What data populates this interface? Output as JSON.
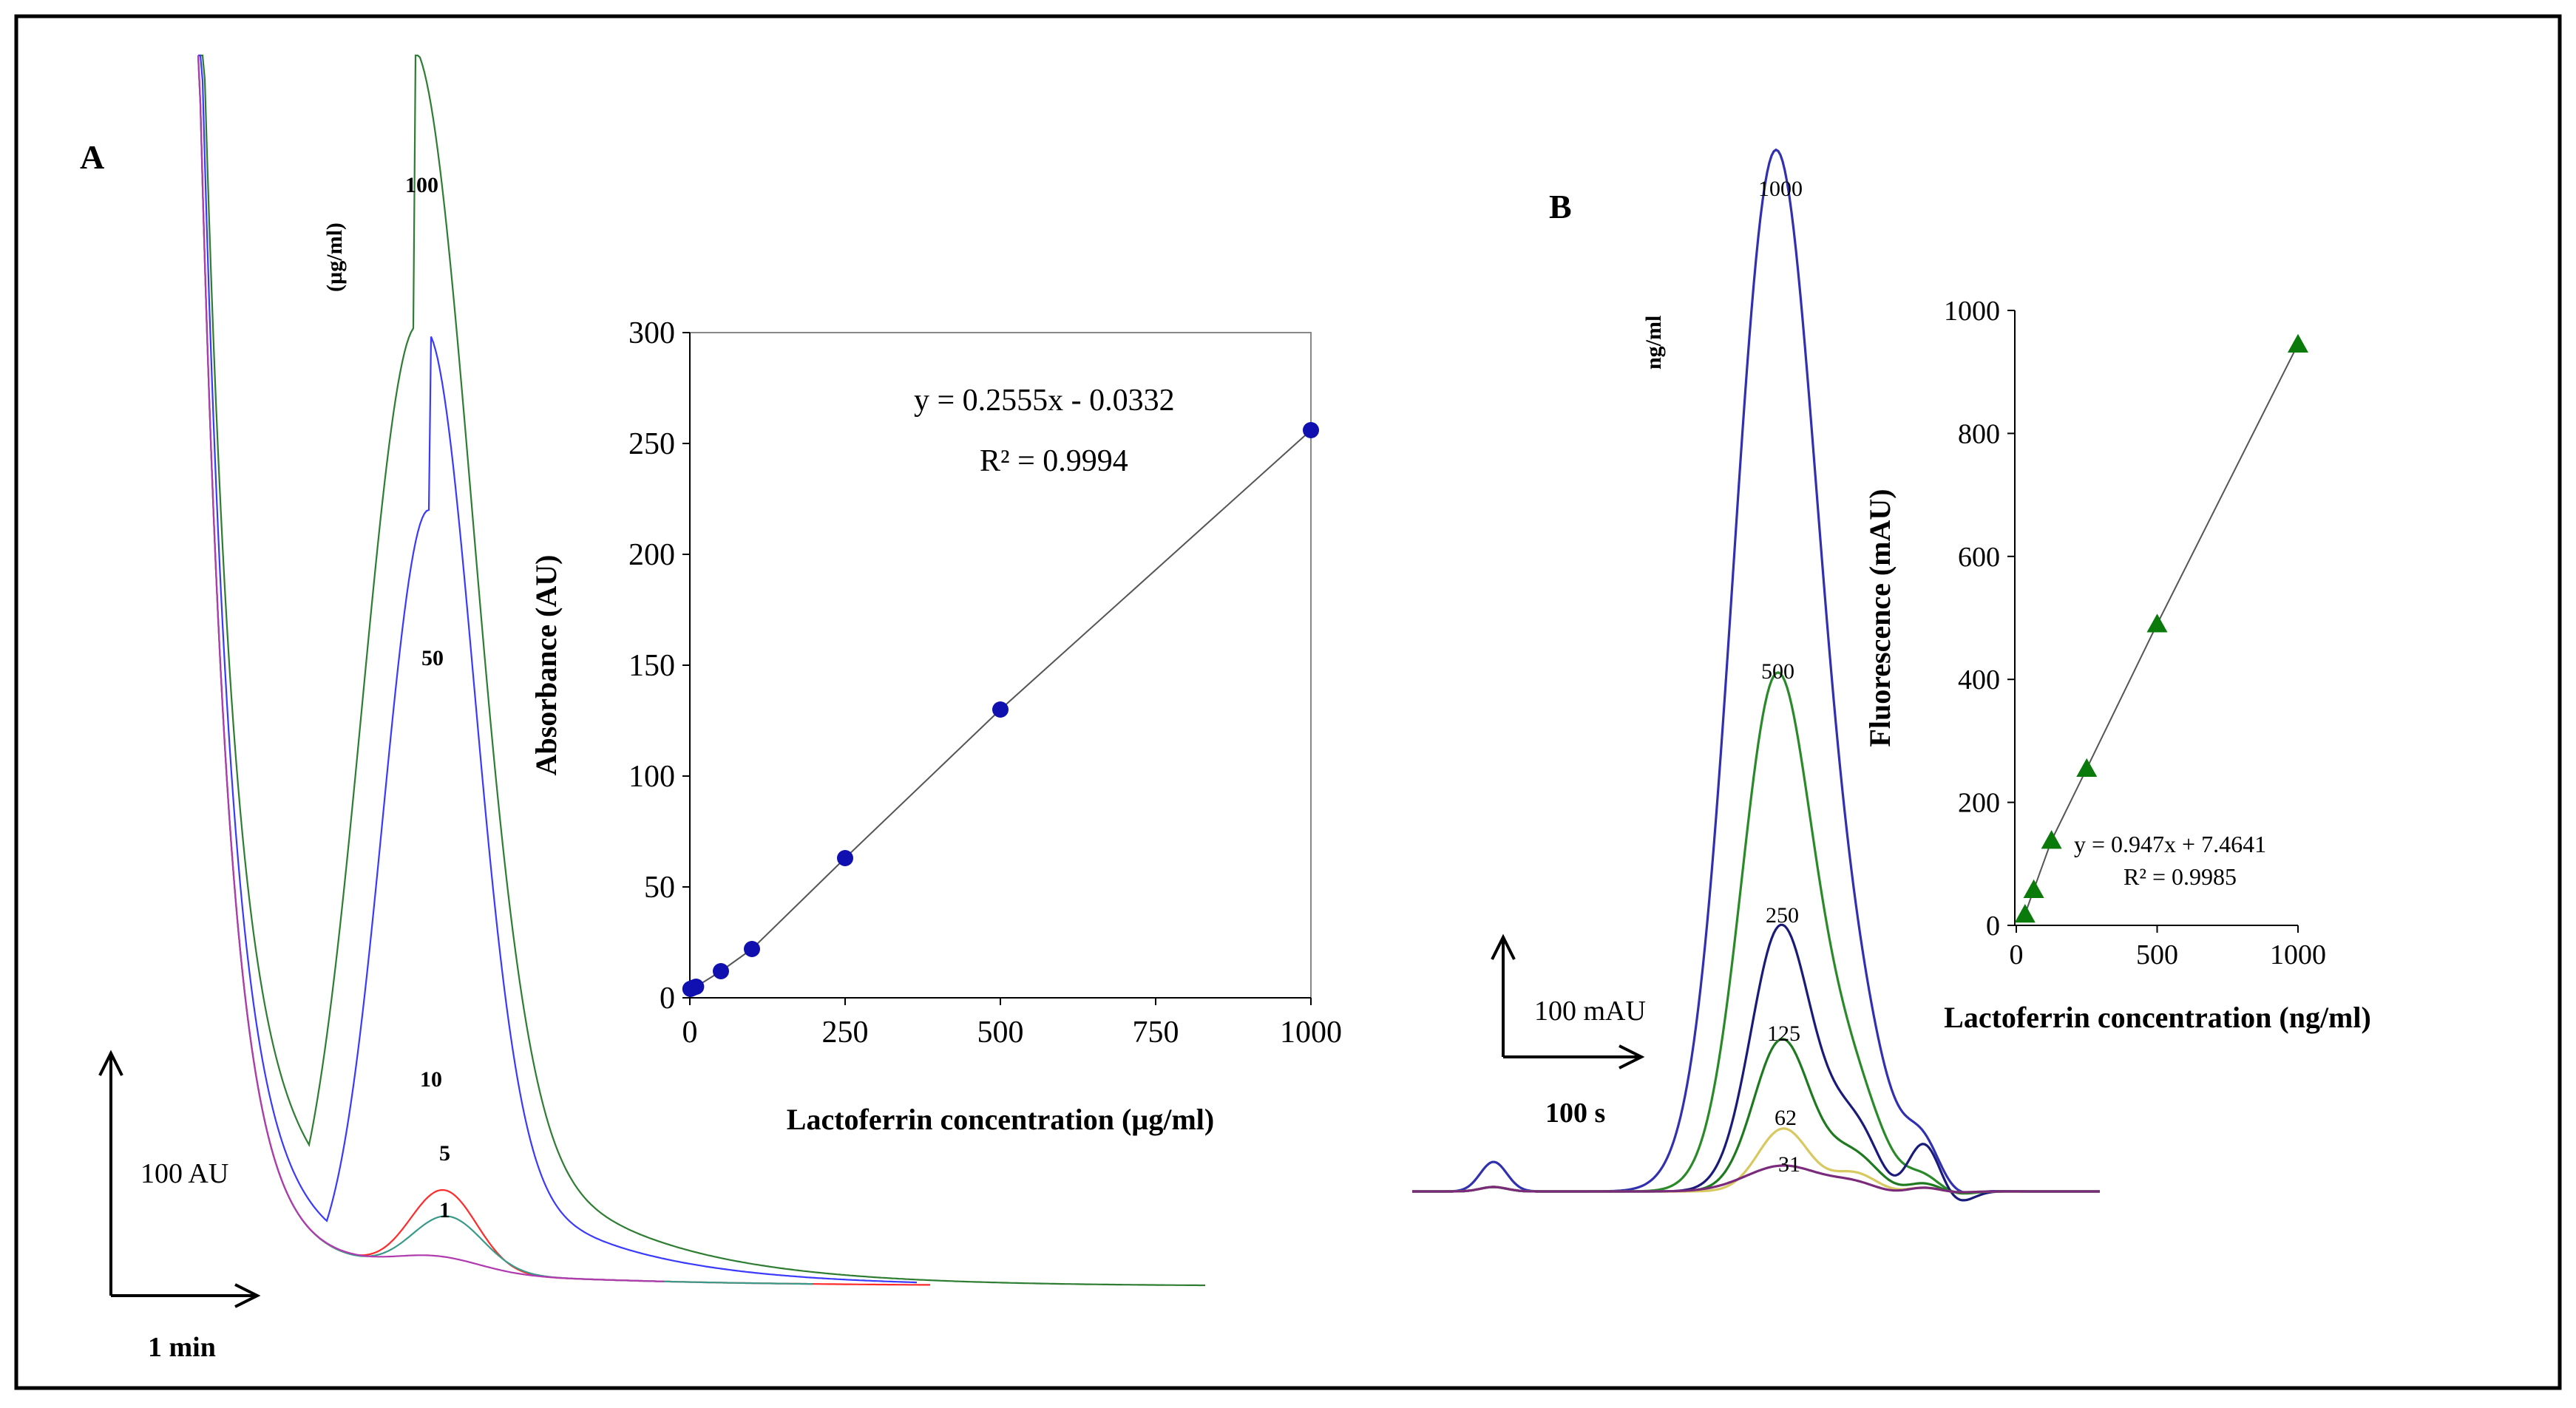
{
  "panels": {
    "A": {
      "label": "A",
      "unit_label": "(µg/ml)",
      "scale_y_label": "100 AU",
      "scale_x_label": "1 min",
      "peak_labels": [
        "100",
        "50",
        "10",
        "5",
        "1"
      ]
    },
    "B": {
      "label": "B",
      "unit_label": "ng/ml",
      "scale_y_label": "100 mAU",
      "scale_x_label": "100 s",
      "peak_labels": [
        "1000",
        "500",
        "250",
        "125",
        "62",
        "31"
      ]
    }
  },
  "colors": {
    "green": "#2e7d32",
    "blue": "#3a3aff",
    "red": "#ff2a2a",
    "teal": "#3a9a8a",
    "magenta": "#b03ab0",
    "navy": "#1a1a7a",
    "yellow": "#d8c860",
    "point_blue": "#1010b0",
    "triangle_green": "#0a7a0a"
  },
  "chart_data": [
    {
      "type": "scatter",
      "name": "calibration-A",
      "xlabel": "Lactoferrin concentration (µg/ml)",
      "ylabel": "Absorbance (AU)",
      "xlim": [
        0,
        1000
      ],
      "ylim": [
        0,
        300
      ],
      "xticks": [
        "0",
        "250",
        "500",
        "750",
        "1000"
      ],
      "yticks": [
        "0",
        "50",
        "100",
        "150",
        "200",
        "250",
        "300"
      ],
      "x": [
        1,
        5,
        10,
        50,
        100,
        250,
        500,
        1000
      ],
      "y": [
        4,
        4.5,
        5,
        12,
        22,
        63,
        130,
        256
      ],
      "equation": "y = 0.2555x - 0.0332",
      "r2": "R² = 0.9994",
      "grid": false,
      "marker": "circle"
    },
    {
      "type": "scatter",
      "name": "calibration-B",
      "xlabel": "Lactoferrin concentration (ng/ml)",
      "ylabel": "Fluorescence (mAU)",
      "xlim": [
        0,
        1000
      ],
      "ylim": [
        0,
        1000
      ],
      "xticks": [
        "0",
        "500",
        "1000"
      ],
      "yticks": [
        "0",
        "200",
        "400",
        "600",
        "800",
        "1000"
      ],
      "x": [
        31,
        62,
        125,
        250,
        500,
        1000
      ],
      "y": [
        18,
        58,
        138,
        255,
        490,
        945
      ],
      "equation": "y = 0.947x + 7.4641",
      "r2": "R² = 0.9985",
      "grid": false,
      "marker": "triangle"
    }
  ]
}
